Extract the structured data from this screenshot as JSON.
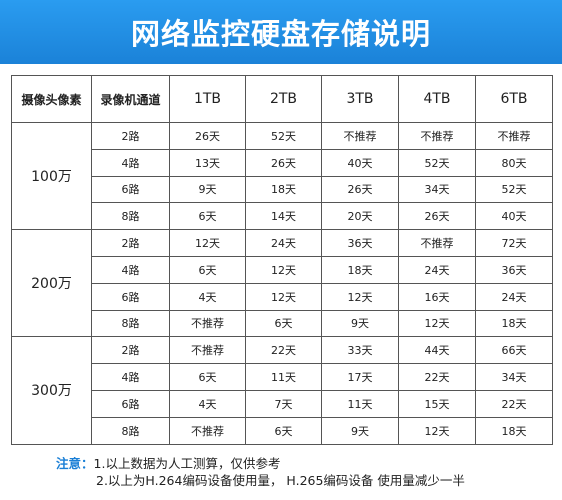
{
  "title": "网络监控硬盘存储说明",
  "table": {
    "headers": [
      "摄像头像素",
      "录像机通道",
      "1TB",
      "2TB",
      "3TB",
      "4TB",
      "6TB"
    ],
    "groups": [
      {
        "resolution": "100万",
        "rows": [
          {
            "channels": "2路",
            "values": [
              "26天",
              "52天",
              "不推荐",
              "不推荐",
              "不推荐"
            ]
          },
          {
            "channels": "4路",
            "values": [
              "13天",
              "26天",
              "40天",
              "52天",
              "80天"
            ]
          },
          {
            "channels": "6路",
            "values": [
              "9天",
              "18天",
              "26天",
              "34天",
              "52天"
            ]
          },
          {
            "channels": "8路",
            "values": [
              "6天",
              "14天",
              "20天",
              "26天",
              "40天"
            ]
          }
        ]
      },
      {
        "resolution": "200万",
        "rows": [
          {
            "channels": "2路",
            "values": [
              "12天",
              "24天",
              "36天",
              "不推荐",
              "72天"
            ]
          },
          {
            "channels": "4路",
            "values": [
              "6天",
              "12天",
              "18天",
              "24天",
              "36天"
            ]
          },
          {
            "channels": "6路",
            "values": [
              "4天",
              "12天",
              "12天",
              "16天",
              "24天"
            ]
          },
          {
            "channels": "8路",
            "values": [
              "不推荐",
              "6天",
              "9天",
              "12天",
              "18天"
            ]
          }
        ]
      },
      {
        "resolution": "300万",
        "rows": [
          {
            "channels": "2路",
            "values": [
              "不推荐",
              "22天",
              "33天",
              "44天",
              "66天"
            ]
          },
          {
            "channels": "4路",
            "values": [
              "6天",
              "11天",
              "17天",
              "22天",
              "34天"
            ]
          },
          {
            "channels": "6路",
            "values": [
              "4天",
              "7天",
              "11天",
              "15天",
              "22天"
            ]
          },
          {
            "channels": "8路",
            "values": [
              "不推荐",
              "6天",
              "9天",
              "12天",
              "18天"
            ]
          }
        ]
      }
    ]
  },
  "note": {
    "label": "注意：",
    "line1": "1.以上数据为人工测算，仅供参考",
    "line2": "2.以上为H.264编码设备使用量，   H.265编码设备 使用量减少一半"
  },
  "colors": {
    "banner": "#1b82d8",
    "note_label": "#1a7fd6",
    "border": "#555555"
  }
}
